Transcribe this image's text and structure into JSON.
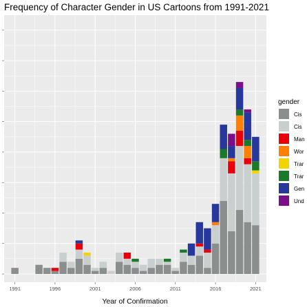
{
  "chart_data": {
    "type": "bar",
    "stacked": true,
    "title": "Frequency of Character Gender in US Cartoons from 1991-2021",
    "xlabel": "Year of Confirmation",
    "ylabel": "",
    "x_ticks": [
      "1991",
      "1996",
      "2001",
      "2006",
      "2011",
      "2016",
      "2021"
    ],
    "xlim": [
      1990,
      2022
    ],
    "ylim": [
      0,
      83
    ],
    "grid": true,
    "legend_position": "right",
    "legend_title": "gender",
    "x": [
      1991,
      1994,
      1995,
      1996,
      1997,
      1998,
      1999,
      2000,
      2001,
      2002,
      2003,
      2004,
      2005,
      2006,
      2007,
      2008,
      2009,
      2010,
      2011,
      2012,
      2013,
      2014,
      2015,
      2016,
      2017,
      2018,
      2019,
      2020,
      2021
    ],
    "series": [
      {
        "name": "Cis Man",
        "color": "#8a8f8e",
        "values": [
          2,
          3,
          2,
          1,
          4,
          2,
          5,
          3,
          1,
          2,
          0,
          4,
          3,
          2,
          1,
          2,
          3,
          3,
          1,
          4,
          3,
          6,
          2,
          10,
          24,
          14,
          21,
          17,
          16
        ]
      },
      {
        "name": "Cis Woman",
        "color": "#c9cfcf",
        "values": [
          0,
          0,
          0,
          0,
          3,
          2,
          3,
          3,
          1,
          2,
          1,
          3,
          2,
          2,
          2,
          3,
          2,
          1,
          1,
          3,
          3,
          3,
          5,
          6,
          14,
          19,
          21,
          19,
          17
        ]
      },
      {
        "name": "Man",
        "color": "#e8000b",
        "values": [
          0,
          0,
          0,
          1,
          0,
          0,
          2,
          0,
          0,
          0,
          0,
          0,
          2,
          0,
          0,
          0,
          0,
          0,
          0,
          0,
          0,
          1,
          1,
          0,
          0,
          4,
          5,
          2,
          0
        ]
      },
      {
        "name": "Woman",
        "color": "#ff8000",
        "values": [
          0,
          0,
          0,
          0,
          0,
          0,
          0,
          0,
          0,
          0,
          0,
          0,
          0,
          0,
          0,
          0,
          0,
          0,
          0,
          0,
          0,
          0,
          0,
          1,
          0,
          1,
          5,
          4,
          0
        ]
      },
      {
        "name": "Trans Woman",
        "color": "#f2d500",
        "values": [
          0,
          0,
          0,
          0,
          0,
          0,
          0,
          1,
          0,
          0,
          0,
          0,
          0,
          0,
          0,
          0,
          0,
          0,
          0,
          0,
          0,
          0,
          0,
          0,
          0,
          0,
          0,
          0,
          1
        ]
      },
      {
        "name": "Trans Man",
        "color": "#1a7a2a",
        "values": [
          0,
          0,
          0,
          0,
          0,
          0,
          0,
          0,
          0,
          0,
          0,
          0,
          0,
          1,
          0,
          0,
          0,
          1,
          0,
          1,
          0,
          0,
          0,
          0,
          3,
          0,
          2,
          2,
          3
        ]
      },
      {
        "name": "Gender Nonconforming",
        "color": "#27379b",
        "values": [
          0,
          0,
          0,
          0,
          0,
          0,
          1,
          0,
          0,
          0,
          0,
          0,
          0,
          0,
          0,
          0,
          0,
          0,
          0,
          0,
          4,
          7,
          7,
          6,
          8,
          4,
          7,
          9,
          8
        ]
      },
      {
        "name": "Undetermined",
        "color": "#7b0f8a",
        "values": [
          0,
          0,
          0,
          0,
          0,
          0,
          0,
          0,
          0,
          0,
          0,
          0,
          0,
          0,
          0,
          0,
          0,
          0,
          0,
          0,
          0,
          0,
          0,
          0,
          0,
          4,
          2,
          1,
          0
        ]
      }
    ]
  },
  "legend_labels": [
    "Cis",
    "Cis",
    "Man",
    "Wor",
    "Trar",
    "Trar",
    "Gen",
    "Und"
  ]
}
